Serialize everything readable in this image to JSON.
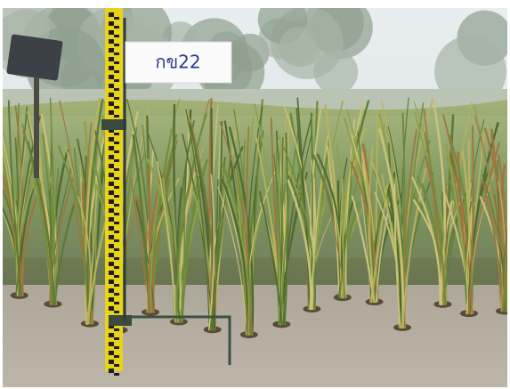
{
  "sign": {
    "label": "กข22"
  }
}
